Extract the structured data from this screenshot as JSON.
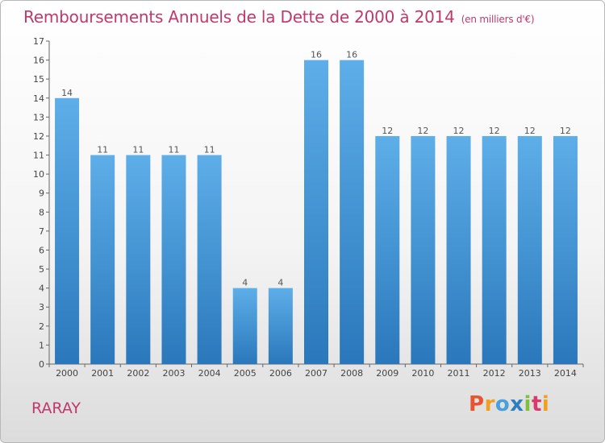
{
  "header": {
    "title": "Remboursements Annuels de la Dette de 2000 à 2014",
    "unit": "(en milliers d'€)"
  },
  "footer": {
    "commune": "RARAY",
    "brand": "Proxiti"
  },
  "colors": {
    "title": "#c0396b",
    "bar_top": "#5eaee9",
    "bar_bottom": "#2a78bb",
    "logo_p": "#e8542f",
    "logo_r": "#f0a020",
    "logo_o": "#4aa0d8",
    "logo_x": "#2e7fc0",
    "logo_i": "#7fbf3f",
    "logo_t": "#d83b6b"
  },
  "chart_data": {
    "type": "bar",
    "title": "Remboursements Annuels de la Dette de 2000 à 2014",
    "subtitle": "(en milliers d'€)",
    "xlabel": "",
    "ylabel": "",
    "categories": [
      "2000",
      "2001",
      "2002",
      "2003",
      "2004",
      "2005",
      "2006",
      "2007",
      "2008",
      "2009",
      "2010",
      "2011",
      "2012",
      "2013",
      "2014"
    ],
    "values": [
      14,
      11,
      11,
      11,
      11,
      4,
      4,
      16,
      16,
      12,
      12,
      12,
      12,
      12,
      12
    ],
    "ylim": [
      0,
      17
    ],
    "yticks": [
      0,
      1,
      2,
      3,
      4,
      5,
      6,
      7,
      8,
      9,
      10,
      11,
      12,
      13,
      14,
      15,
      16,
      17
    ],
    "grid": false,
    "data_labels": true
  }
}
